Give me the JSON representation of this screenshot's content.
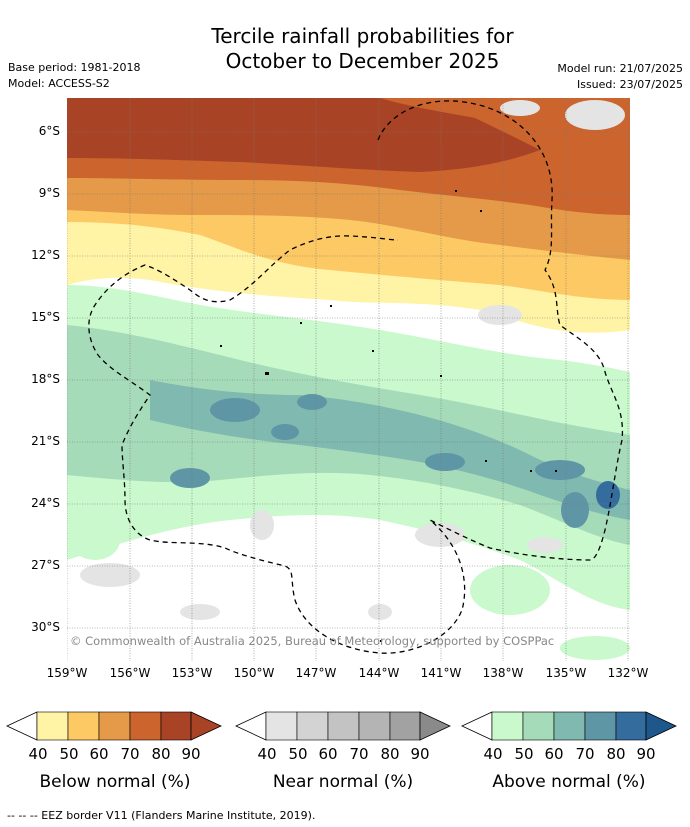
{
  "title_line1": "Tercile rainfall probabilities for",
  "title_line2": "October to December 2025",
  "base_period": "Base period: 1981-2018",
  "model": "Model: ACCESS-S2",
  "model_run": "Model run: 21/07/2025",
  "issued": "Issued: 23/07/2025",
  "copyright": "© Commonwealth of Australia 2025, Bureau of Meteorology, supported by COSPPac",
  "lat_labels": [
    "6°S",
    "9°S",
    "12°S",
    "15°S",
    "18°S",
    "21°S",
    "24°S",
    "27°S",
    "30°S"
  ],
  "lon_labels": [
    "159°W",
    "156°W",
    "153°W",
    "150°W",
    "147°W",
    "144°W",
    "141°W",
    "138°W",
    "135°W",
    "132°W"
  ],
  "legends": [
    {
      "caption": "Below normal (%)",
      "ticks": [
        "40",
        "50",
        "60",
        "70",
        "80",
        "90"
      ],
      "colors": [
        "#fff3a6",
        "#fdc964",
        "#e49a48",
        "#cc642e",
        "#a84425",
        "#a84425"
      ]
    },
    {
      "caption": "Near normal (%)",
      "ticks": [
        "40",
        "50",
        "60",
        "70",
        "80",
        "90"
      ],
      "colors": [
        "#e4e4e4",
        "#d3d3d3",
        "#c3c3c3",
        "#b4b4b4",
        "#a2a2a2",
        "#8a8a8a"
      ]
    },
    {
      "caption": "Above normal (%)",
      "ticks": [
        "40",
        "50",
        "60",
        "70",
        "80",
        "90"
      ],
      "colors": [
        "#c9f9cc",
        "#a6dbb9",
        "#7fb9af",
        "#5f96a6",
        "#356c9e",
        "#1e578c"
      ]
    }
  ],
  "footer": "-- -- -- EEZ border V11 (Flanders Marine Institute, 2019)."
}
